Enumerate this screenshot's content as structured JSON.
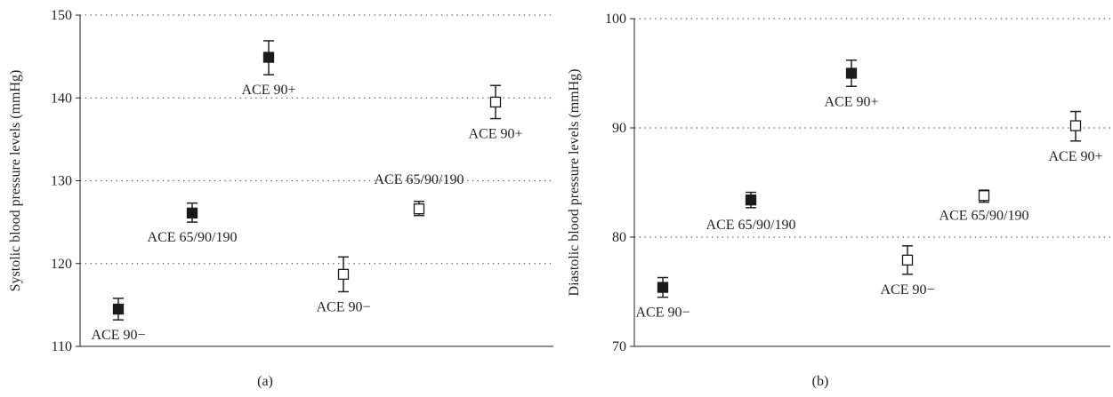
{
  "chart_data": [
    {
      "type": "scatter",
      "panel_label": "(a)",
      "xlabel": "",
      "ylabel": "Systolic blood pressure levels (mmHg)",
      "ylim": [
        110,
        150
      ],
      "yticks": [
        110,
        120,
        130,
        140,
        150
      ],
      "grid": "dotted horizontal",
      "series": [
        {
          "marker": "filled-square",
          "points": [
            {
              "x": 1,
              "y": 114.5,
              "err_low": 113.2,
              "err_high": 115.8,
              "label": "ACE 90−"
            },
            {
              "x": 2,
              "y": 126.1,
              "err_low": 125.0,
              "err_high": 127.3,
              "label": "ACE 65/90/190"
            },
            {
              "x": 3,
              "y": 144.9,
              "err_low": 142.8,
              "err_high": 146.9,
              "label": "ACE 90+"
            }
          ]
        },
        {
          "marker": "open-square",
          "points": [
            {
              "x": 4,
              "y": 118.7,
              "err_low": 116.6,
              "err_high": 120.8,
              "label": "ACE 90−"
            },
            {
              "x": 5,
              "y": 126.6,
              "err_low": 125.8,
              "err_high": 127.5,
              "label": "ACE 65/90/190"
            },
            {
              "x": 6,
              "y": 139.5,
              "err_low": 137.5,
              "err_high": 141.5,
              "label": "ACE 90+"
            }
          ]
        }
      ]
    },
    {
      "type": "scatter",
      "panel_label": "(b)",
      "xlabel": "",
      "ylabel": "Diastolic blood pressure levels (mmHg)",
      "ylim": [
        70,
        100
      ],
      "yticks": [
        70,
        80,
        90,
        100
      ],
      "grid": "dotted horizontal",
      "series": [
        {
          "marker": "filled-square",
          "points": [
            {
              "x": 1,
              "y": 75.4,
              "err_low": 74.5,
              "err_high": 76.3,
              "label": "ACE 90−"
            },
            {
              "x": 2,
              "y": 83.4,
              "err_low": 82.7,
              "err_high": 84.1,
              "label": "ACE 65/90/190"
            },
            {
              "x": 3,
              "y": 95.0,
              "err_low": 93.8,
              "err_high": 96.2,
              "label": "ACE 90+"
            }
          ]
        },
        {
          "marker": "open-square",
          "points": [
            {
              "x": 4,
              "y": 77.9,
              "err_low": 76.6,
              "err_high": 79.2,
              "label": "ACE 90−"
            },
            {
              "x": 5,
              "y": 83.8,
              "err_low": 83.2,
              "err_high": 84.3,
              "label": "ACE 65/90/190"
            },
            {
              "x": 6,
              "y": 90.2,
              "err_low": 88.8,
              "err_high": 91.5,
              "label": "ACE 90+"
            }
          ]
        }
      ]
    }
  ]
}
